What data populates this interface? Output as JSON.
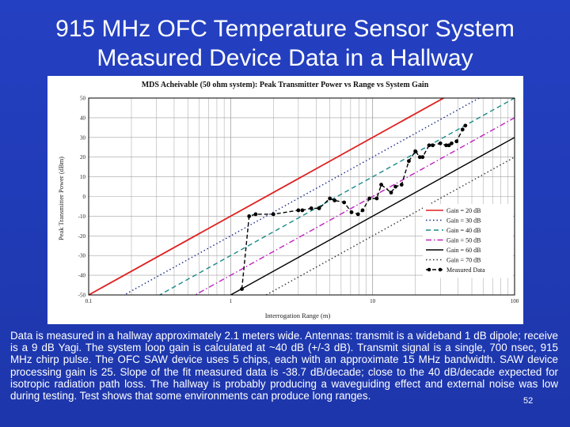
{
  "slide": {
    "title_line1": "915 MHz OFC Temperature Sensor System",
    "title_line2": "Measured Device Data in a Hallway",
    "body": "Data is measured in a hallway approximately 2.1 meters wide. Antennas: transmit is a wideband 1 dB dipole; receive is a 9 dB Yagi. The system loop gain is calculated at ~40 dB (+/-3 dB). Transmit signal is a single, 700 nsec, 915 MHz chirp pulse. The OFC SAW device uses 5 chips, each with an approximate 15 MHz bandwidth. SAW device processing gain is 25. Slope of the fit measured data is -38.7 dB/decade; close to the 40 dB/decade expected for isotropic radiation path loss. The hallway is probably producing a waveguiding effect and external noise was low during testing. Test shows that some environments can produce long ranges.",
    "page_number": "52"
  },
  "chart_data": {
    "type": "line",
    "title": "MDS Acheivable (50 ohm system): Peak Transmitter Power vs Range vs System Gain",
    "xlabel": "Interrogation Range (m)",
    "ylabel": "Peak Transmitter Power (dBm)",
    "x_scale": "log",
    "xlim": [
      0.1,
      100
    ],
    "ylim": [
      -50,
      50
    ],
    "grid": true,
    "legend_position": "bottom-right",
    "x_ticks": [
      "0.1",
      "1",
      "10",
      "100"
    ],
    "y_ticks": [
      "50",
      "40",
      "30",
      "20",
      "10",
      "0",
      "-10",
      "-20",
      "-30",
      "-40",
      "-50"
    ],
    "series": [
      {
        "name": "Gain = 20 dB",
        "color": "#e02020",
        "style": "solid",
        "x": [
          0.1,
          100
        ],
        "y": [
          -50,
          70
        ]
      },
      {
        "name": "Gain = 30 dB",
        "color": "#1a2a8a",
        "style": "dotted",
        "x": [
          0.1,
          100
        ],
        "y": [
          -60,
          60
        ]
      },
      {
        "name": "Gain = 40 dB",
        "color": "#1a8a8a",
        "style": "dashed",
        "x": [
          0.1,
          100
        ],
        "y": [
          -70,
          50
        ]
      },
      {
        "name": "Gain = 50 dB",
        "color": "#c020c0",
        "style": "dashdot",
        "x": [
          0.1,
          100
        ],
        "y": [
          -80,
          40
        ]
      },
      {
        "name": "Gain = 60 dB",
        "color": "#000000",
        "style": "solid",
        "x": [
          0.1,
          100
        ],
        "y": [
          -90,
          30
        ]
      },
      {
        "name": "Gain = 70 dB",
        "color": "#333333",
        "style": "dotted",
        "x": [
          0.1,
          100
        ],
        "y": [
          -100,
          20
        ]
      },
      {
        "name": "Measured Data",
        "color": "#000000",
        "style": "dashed-markers",
        "x": [
          1.2,
          1.35,
          1.5,
          2.0,
          3.0,
          3.2,
          3.7,
          4.2,
          5.0,
          5.4,
          6.3,
          7.1,
          7.9,
          8.5,
          9.5,
          10.7,
          11.5,
          13.5,
          14.5,
          16.0,
          18.0,
          20.0,
          21.5,
          22.5,
          25.0,
          26.5,
          30.0,
          33.0,
          34.5,
          36.0,
          39.0,
          43.0,
          45.0
        ],
        "y": [
          -47,
          -10,
          -9,
          -9,
          -7,
          -7,
          -6,
          -6,
          -1,
          -2,
          -3,
          -8,
          -9,
          -7,
          -1,
          -1,
          6,
          2,
          5,
          6,
          18,
          23,
          20,
          20,
          26,
          26,
          27,
          26,
          26,
          27,
          28,
          34,
          36
        ]
      }
    ]
  }
}
